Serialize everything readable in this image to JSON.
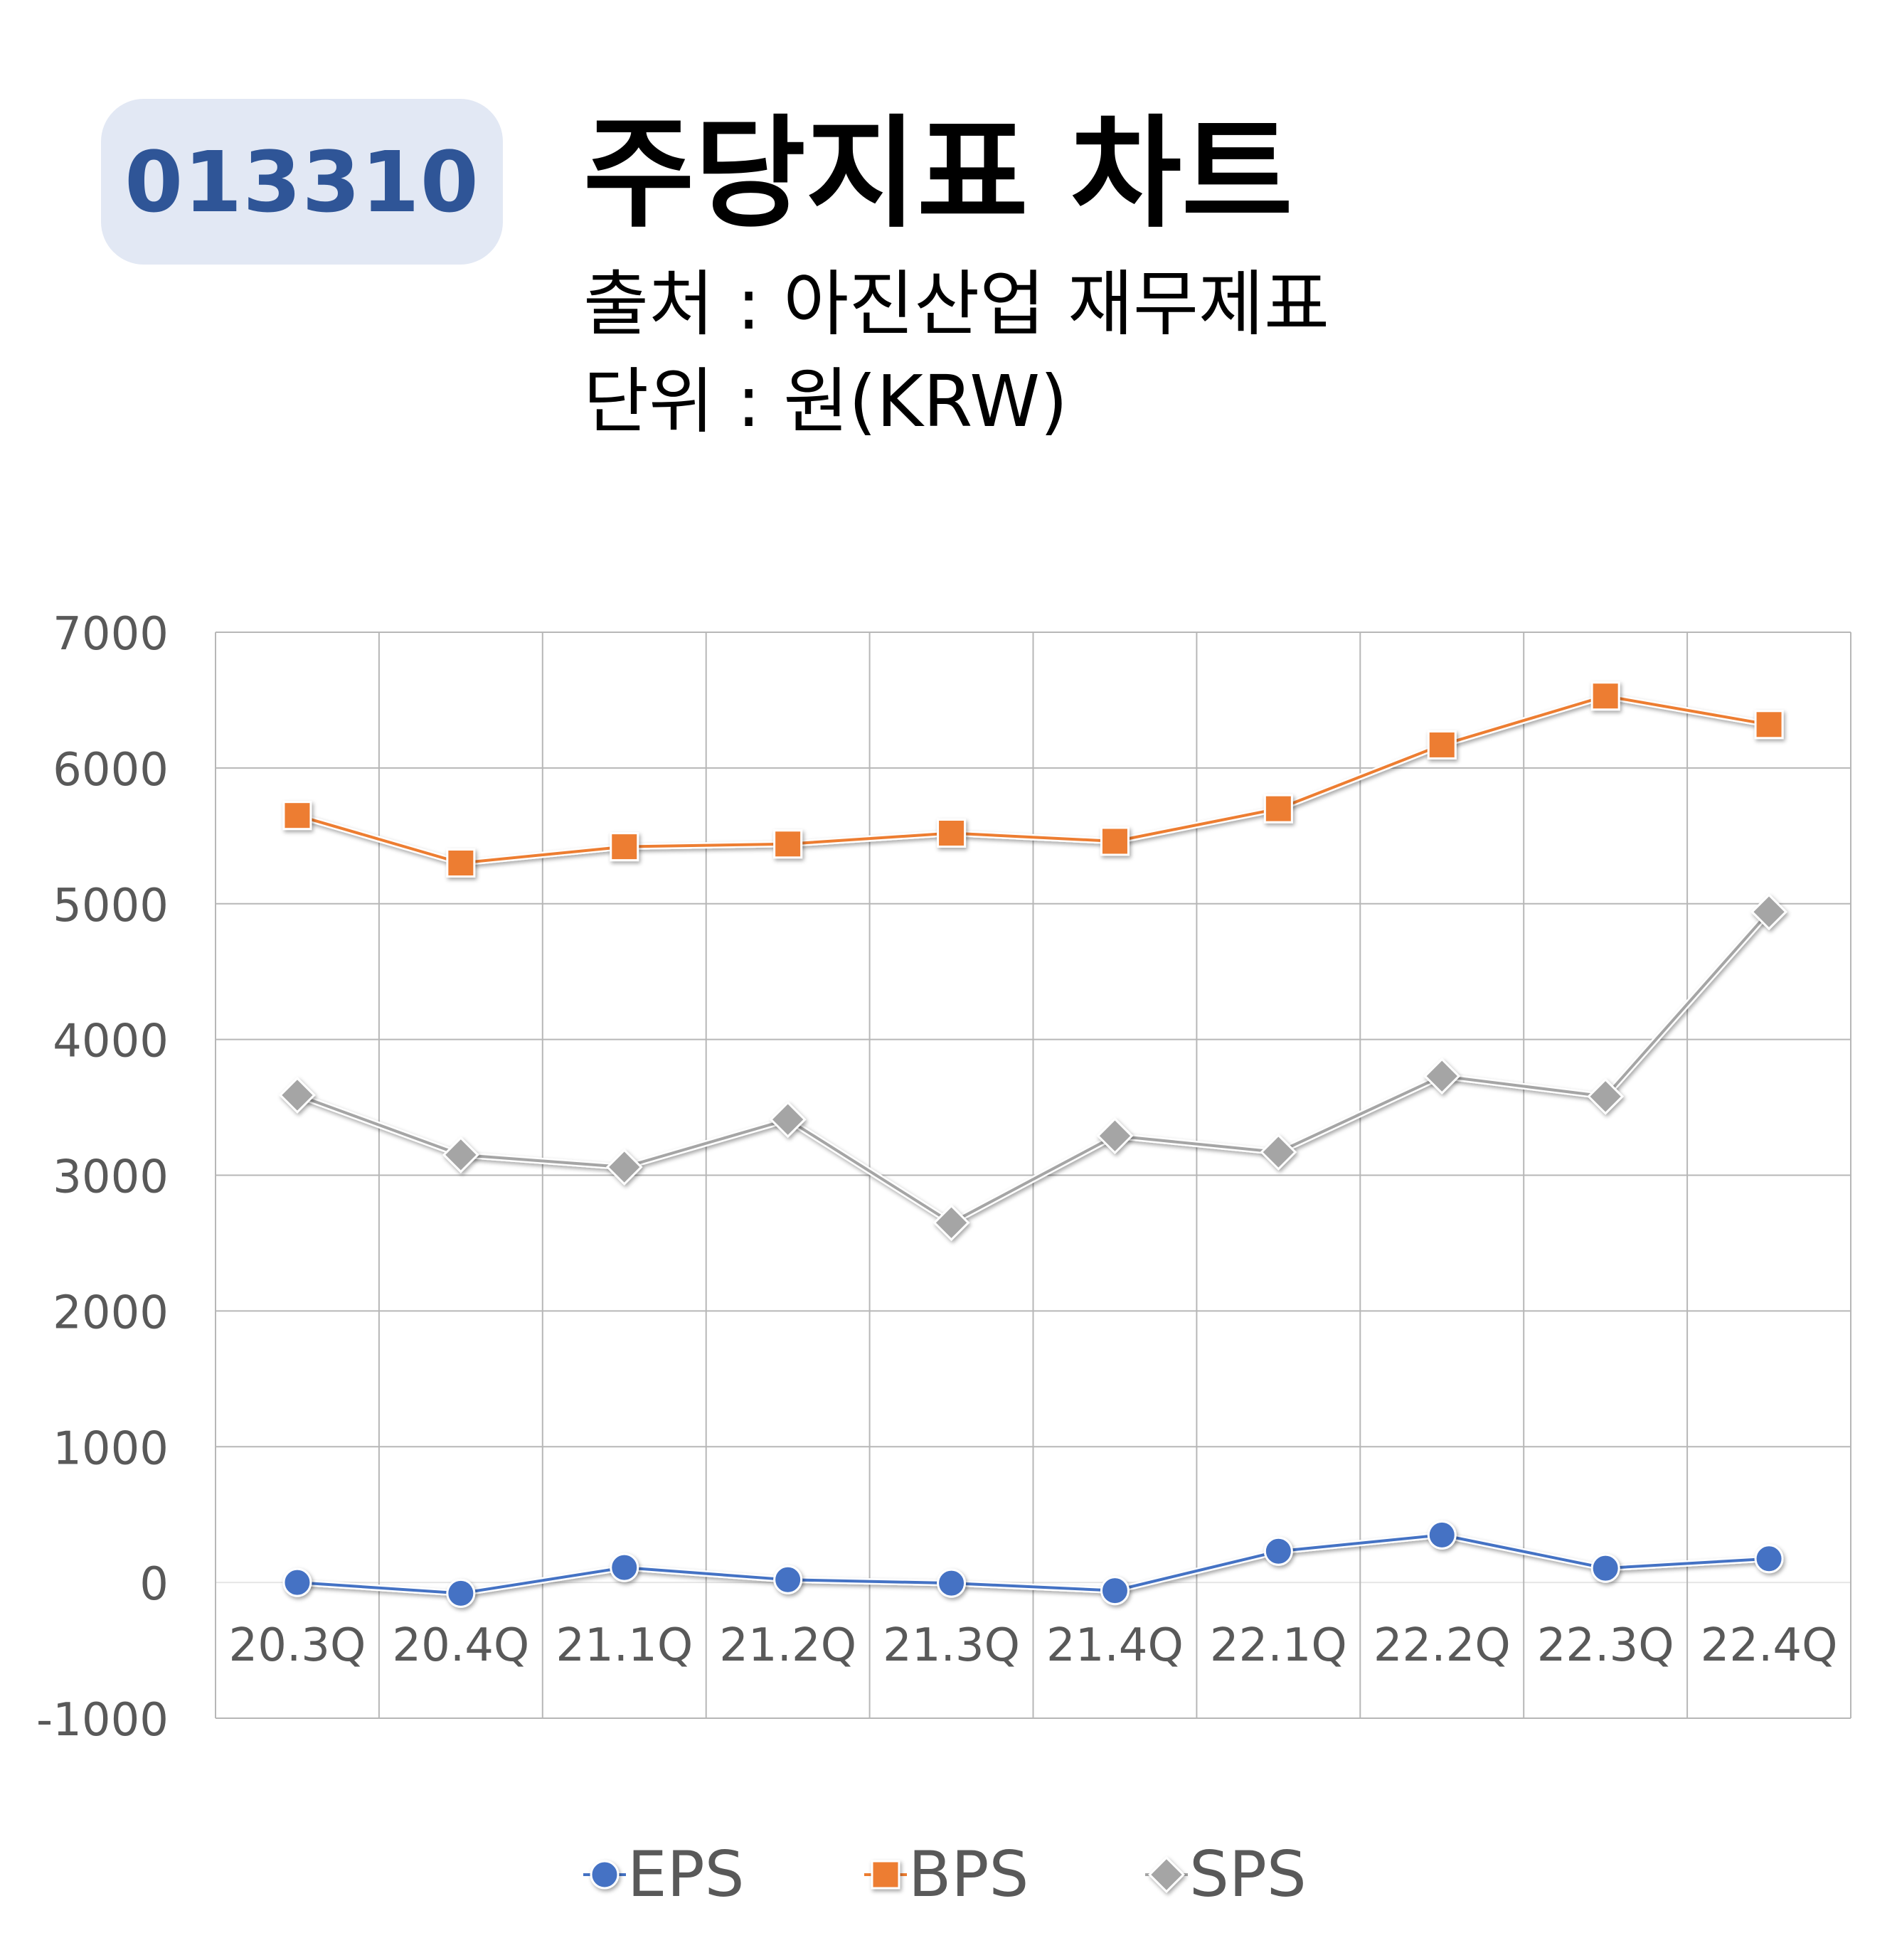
{
  "header": {
    "code": "013310",
    "title": "주당지표 차트",
    "source": "출처 : 아진산업 재무제표",
    "unit": "단위 : 원(KRW)"
  },
  "chart_data": {
    "type": "line",
    "categories": [
      "20.3Q",
      "20.4Q",
      "21.1Q",
      "21.2Q",
      "21.3Q",
      "21.4Q",
      "22.1Q",
      "22.2Q",
      "22.3Q",
      "22.4Q"
    ],
    "ylim": [
      -1000,
      7000
    ],
    "yticks": [
      -1000,
      0,
      1000,
      2000,
      3000,
      4000,
      5000,
      6000,
      7000
    ],
    "grid": true,
    "legend_position": "bottom",
    "series": [
      {
        "name": "EPS",
        "marker": "circle",
        "color": "#4472c4",
        "values": [
          0,
          -80,
          110,
          20,
          -5,
          -60,
          230,
          350,
          105,
          175
        ]
      },
      {
        "name": "BPS",
        "marker": "square",
        "color": "#ed7d31",
        "values": [
          5650,
          5300,
          5420,
          5440,
          5520,
          5460,
          5700,
          6170,
          6530,
          6320
        ]
      },
      {
        "name": "SPS",
        "marker": "diamond",
        "color": "#a5a5a5",
        "values": [
          3590,
          3150,
          3060,
          3410,
          2650,
          3290,
          3170,
          3730,
          3580,
          4940
        ]
      }
    ]
  }
}
